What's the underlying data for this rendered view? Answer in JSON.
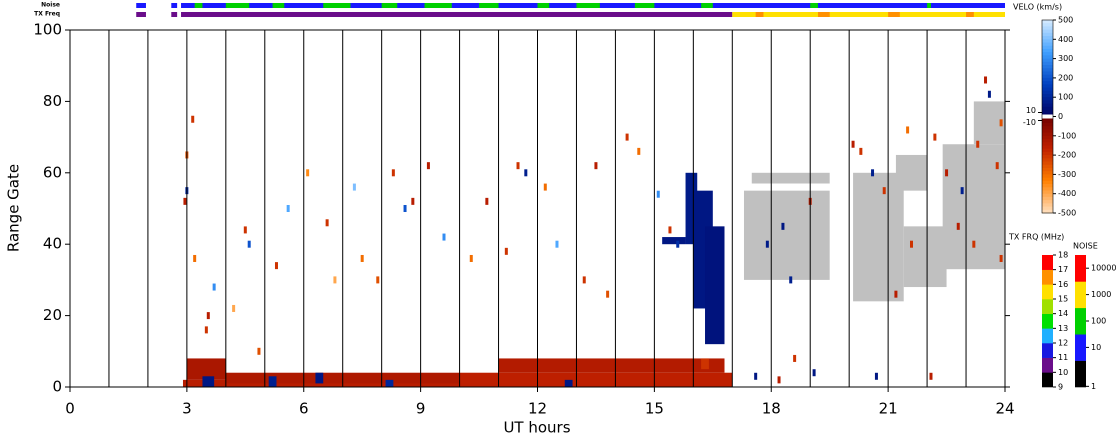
{
  "chart_data": {
    "type": "range-time",
    "xlabel": "UT hours",
    "ylabel": "Range Gate",
    "xlim": [
      0,
      24
    ],
    "xticks": [
      0,
      3,
      6,
      9,
      12,
      15,
      18,
      21,
      24
    ],
    "ylim": [
      0,
      100
    ],
    "yticks": [
      0,
      20,
      40,
      60,
      80,
      100
    ],
    "scan_lines": [
      1,
      2,
      3,
      4,
      5,
      6,
      7,
      8,
      9,
      10,
      11,
      12,
      13,
      14,
      15,
      16,
      17,
      18,
      19,
      20,
      21,
      22,
      23
    ],
    "ground_scatter_color": "#c0c0c0",
    "ground_scatter": [
      [
        17.3,
        19.5,
        30,
        55
      ],
      [
        17.5,
        19.5,
        57,
        60
      ],
      [
        20.1,
        21.4,
        24,
        60
      ],
      [
        21.4,
        22.5,
        28,
        45
      ],
      [
        22.4,
        24,
        33,
        68
      ],
      [
        23.2,
        24,
        68,
        80
      ],
      [
        21.2,
        22,
        55,
        65
      ]
    ],
    "cells": [
      [
        2.9,
        10,
        0,
        2,
        -150
      ],
      [
        3,
        4,
        2,
        8,
        -120
      ],
      [
        4,
        10,
        1,
        4,
        -130
      ],
      [
        10,
        17,
        0,
        4,
        -160
      ],
      [
        11,
        16.8,
        4,
        8,
        -140
      ],
      [
        3.4,
        3.7,
        0,
        3,
        60
      ],
      [
        5.1,
        5.3,
        0,
        3,
        80
      ],
      [
        6.3,
        6.5,
        1,
        4,
        60
      ],
      [
        8.1,
        8.3,
        0,
        2,
        100
      ],
      [
        12.7,
        12.9,
        0,
        2,
        60
      ],
      [
        16.2,
        16.4,
        5,
        8,
        -200
      ],
      [
        15.8,
        16.1,
        40,
        60,
        70
      ],
      [
        16,
        16.5,
        22,
        55,
        60
      ],
      [
        16.3,
        16.8,
        12,
        45,
        50
      ],
      [
        15.2,
        15.8,
        40,
        42,
        60
      ]
    ],
    "points": [
      [
        3.15,
        75,
        -200
      ],
      [
        3,
        65,
        -250
      ],
      [
        3,
        55,
        100
      ],
      [
        2.95,
        52,
        -150
      ],
      [
        3.2,
        36,
        -300
      ],
      [
        3.5,
        16,
        -200
      ],
      [
        3.55,
        20,
        -150
      ],
      [
        3.7,
        28,
        300
      ],
      [
        4.2,
        22,
        -400
      ],
      [
        4.5,
        44,
        -200
      ],
      [
        4.6,
        40,
        200
      ],
      [
        4.85,
        10,
        -250
      ],
      [
        5.3,
        34,
        -200
      ],
      [
        5.6,
        50,
        350
      ],
      [
        6.1,
        60,
        -350
      ],
      [
        6.6,
        46,
        -200
      ],
      [
        6.8,
        30,
        -400
      ],
      [
        7.3,
        56,
        400
      ],
      [
        7.5,
        36,
        -300
      ],
      [
        7.9,
        30,
        -250
      ],
      [
        8.3,
        60,
        -200
      ],
      [
        8.6,
        50,
        200
      ],
      [
        8.8,
        52,
        -150
      ],
      [
        9.2,
        62,
        -150
      ],
      [
        9.6,
        42,
        300
      ],
      [
        10.3,
        36,
        -300
      ],
      [
        10.7,
        52,
        -150
      ],
      [
        11.2,
        38,
        -200
      ],
      [
        11.5,
        62,
        -200
      ],
      [
        11.7,
        60,
        80
      ],
      [
        12.2,
        56,
        -300
      ],
      [
        12.5,
        40,
        350
      ],
      [
        13.2,
        30,
        -200
      ],
      [
        13.5,
        62,
        -150
      ],
      [
        13.8,
        26,
        -250
      ],
      [
        14.3,
        70,
        -200
      ],
      [
        14.6,
        66,
        -300
      ],
      [
        15.1,
        54,
        300
      ],
      [
        15.4,
        44,
        -200
      ],
      [
        15.6,
        40,
        120
      ],
      [
        17.6,
        3,
        60
      ],
      [
        18.2,
        2,
        -150
      ],
      [
        18.6,
        8,
        -200
      ],
      [
        19.1,
        4,
        60
      ],
      [
        20.1,
        68,
        -150
      ],
      [
        20.3,
        66,
        -200
      ],
      [
        20.6,
        60,
        80
      ],
      [
        20.9,
        55,
        -200
      ],
      [
        21.2,
        26,
        -150
      ],
      [
        21.5,
        72,
        -300
      ],
      [
        22.2,
        70,
        -200
      ],
      [
        22.5,
        60,
        -150
      ],
      [
        22.9,
        55,
        80
      ],
      [
        23.3,
        68,
        -200
      ],
      [
        23.5,
        86,
        -150
      ],
      [
        23.6,
        82,
        70
      ],
      [
        23.8,
        62,
        -200
      ],
      [
        23.9,
        74,
        -250
      ],
      [
        20.7,
        3,
        60
      ],
      [
        22.1,
        3,
        -150
      ],
      [
        23.2,
        40,
        -200
      ],
      [
        22.8,
        45,
        -150
      ],
      [
        21.6,
        40,
        -200
      ],
      [
        23.9,
        36,
        -200
      ],
      [
        17.9,
        40,
        70
      ],
      [
        18.3,
        45,
        60
      ],
      [
        19,
        52,
        -150
      ],
      [
        18.5,
        30,
        80
      ]
    ],
    "noise_label": "Noise",
    "txfreq_label": "TX Freq",
    "noise_strip": [
      [
        1.7,
        1.95,
        20
      ],
      [
        2.6,
        2.75,
        20
      ],
      [
        2.85,
        24,
        20
      ],
      [
        3.2,
        3.4,
        200
      ],
      [
        4,
        4.6,
        200
      ],
      [
        5.2,
        5.5,
        200
      ],
      [
        6.5,
        7.2,
        200
      ],
      [
        8,
        8.4,
        200
      ],
      [
        9.1,
        9.8,
        200
      ],
      [
        10.5,
        11,
        200
      ],
      [
        12,
        12.3,
        200
      ],
      [
        13,
        13.6,
        200
      ],
      [
        14.5,
        15,
        200
      ],
      [
        16.2,
        16.5,
        200
      ],
      [
        19,
        19.2,
        200
      ],
      [
        22,
        22.1,
        200
      ]
    ],
    "txfreq_strip": [
      [
        1.7,
        1.95,
        10.5
      ],
      [
        2.6,
        2.75,
        10.5
      ],
      [
        2.85,
        17,
        10.5
      ],
      [
        17,
        24,
        15.5
      ],
      [
        17.6,
        17.8,
        16.5
      ],
      [
        19.2,
        19.5,
        16.5
      ],
      [
        21,
        21.3,
        16.5
      ],
      [
        23,
        23.2,
        16.5
      ]
    ],
    "velo": {
      "title": "VELO (km/s)",
      "lim": [
        -500,
        500
      ],
      "ticks": [
        500,
        400,
        300,
        200,
        100,
        0,
        -100,
        -200,
        -300,
        -400,
        -500
      ],
      "inner_ticks": [
        10,
        -10
      ],
      "pos_colors": [
        "#000060",
        "#0040c0",
        "#40a0ff",
        "#d8ecff"
      ],
      "neg_colors": [
        "#700000",
        "#c02000",
        "#ff8000",
        "#ffe0c0"
      ]
    },
    "txfreq": {
      "title": "TX FRQ (MHz)",
      "ticks": [
        9,
        10,
        11,
        12,
        13,
        14,
        15,
        16,
        17,
        18
      ],
      "colors": [
        "#000000",
        "#6a0d8a",
        "#1818e0",
        "#20b0ff",
        "#00e000",
        "#a0e000",
        "#ffe000",
        "#ff9000",
        "#ff0000"
      ]
    },
    "noise": {
      "title": "NOISE",
      "ticks": [
        1,
        10,
        100,
        1000,
        10000
      ],
      "colors": [
        "#000000",
        "#1818ff",
        "#00d000",
        "#ffe000",
        "#ff0000"
      ]
    }
  }
}
